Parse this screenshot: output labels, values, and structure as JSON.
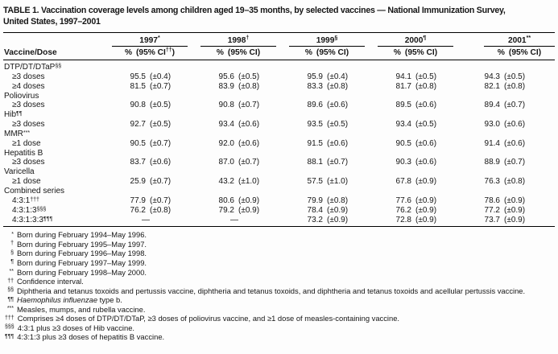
{
  "title": {
    "line1": "TABLE 1. Vaccination coverage levels among children aged 19–35 months, by selected vaccines — National Immunization Survey,",
    "line2": "United States, 1997–2001"
  },
  "table": {
    "row_header": "Vaccine/Dose",
    "years": [
      {
        "label": "1997",
        "sup": "*",
        "pct": "%",
        "ci_open": "(95% CI",
        "ci_sup": "††",
        "ci_close": ")"
      },
      {
        "label": "1998",
        "sup": "†",
        "pct": "%",
        "ci_open": "(95% CI",
        "ci_sup": "",
        "ci_close": ")"
      },
      {
        "label": "1999",
        "sup": "§",
        "pct": "%",
        "ci_open": "(95% CI",
        "ci_sup": "",
        "ci_close": ")"
      },
      {
        "label": "2000",
        "sup": "¶",
        "pct": "%",
        "ci_open": "(95% CI",
        "ci_sup": "",
        "ci_close": ")"
      },
      {
        "label": "2001",
        "sup": "**",
        "pct": "%",
        "ci_open": "(95% CI",
        "ci_sup": "",
        "ci_close": ")"
      }
    ],
    "rows": [
      {
        "indent": false,
        "label": "DTP/DT/DTaP",
        "sup": "§§",
        "cells": []
      },
      {
        "indent": true,
        "label": "≥3 doses",
        "sup": "",
        "cells": [
          [
            "95.5",
            "(±0.4)"
          ],
          [
            "95.6",
            "(±0.5)"
          ],
          [
            "95.9",
            "(±0.4)"
          ],
          [
            "94.1",
            "(±0.5)"
          ],
          [
            "94.3",
            "(±0.5)"
          ]
        ]
      },
      {
        "indent": true,
        "label": "≥4 doses",
        "sup": "",
        "cells": [
          [
            "81.5",
            "(±0.7)"
          ],
          [
            "83.9",
            "(±0.8)"
          ],
          [
            "83.3",
            "(±0.8)"
          ],
          [
            "81.7",
            "(±0.8)"
          ],
          [
            "82.1",
            "(±0.8)"
          ]
        ]
      },
      {
        "indent": false,
        "label": "Poliovirus",
        "sup": "",
        "cells": []
      },
      {
        "indent": true,
        "label": "≥3 doses",
        "sup": "",
        "cells": [
          [
            "90.8",
            "(±0.5)"
          ],
          [
            "90.8",
            "(±0.7)"
          ],
          [
            "89.6",
            "(±0.6)"
          ],
          [
            "89.5",
            "(±0.6)"
          ],
          [
            "89.4",
            "(±0.7)"
          ]
        ]
      },
      {
        "indent": false,
        "label": "Hib",
        "sup": "¶¶",
        "cells": []
      },
      {
        "indent": true,
        "label": "≥3 doses",
        "sup": "",
        "cells": [
          [
            "92.7",
            "(±0.5)"
          ],
          [
            "93.4",
            "(±0.6)"
          ],
          [
            "93.5",
            "(±0.5)"
          ],
          [
            "93.4",
            "(±0.5)"
          ],
          [
            "93.0",
            "(±0.6)"
          ]
        ]
      },
      {
        "indent": false,
        "label": "MMR",
        "sup": "***",
        "cells": []
      },
      {
        "indent": true,
        "label": "≥1 dose",
        "sup": "",
        "cells": [
          [
            "90.5",
            "(±0.7)"
          ],
          [
            "92.0",
            "(±0.6)"
          ],
          [
            "91.5",
            "(±0.6)"
          ],
          [
            "90.5",
            "(±0.6)"
          ],
          [
            "91.4",
            "(±0.6)"
          ]
        ]
      },
      {
        "indent": false,
        "label": "Hepatitis B",
        "sup": "",
        "cells": []
      },
      {
        "indent": true,
        "label": "≥3 doses",
        "sup": "",
        "cells": [
          [
            "83.7",
            "(±0.6)"
          ],
          [
            "87.0",
            "(±0.7)"
          ],
          [
            "88.1",
            "(±0.7)"
          ],
          [
            "90.3",
            "(±0.6)"
          ],
          [
            "88.9",
            "(±0.7)"
          ]
        ]
      },
      {
        "indent": false,
        "label": "Varicella",
        "sup": "",
        "cells": []
      },
      {
        "indent": true,
        "label": "≥1 dose",
        "sup": "",
        "cells": [
          [
            "25.9",
            "(±0.7)"
          ],
          [
            "43.2",
            "(±1.0)"
          ],
          [
            "57.5",
            "(±1.0)"
          ],
          [
            "67.8",
            "(±0.9)"
          ],
          [
            "76.3",
            "(±0.8)"
          ]
        ]
      },
      {
        "indent": false,
        "label": "Combined series",
        "sup": "",
        "cells": []
      },
      {
        "indent": true,
        "label": "4:3:1",
        "sup": "†††",
        "cells": [
          [
            "77.9",
            "(±0.7)"
          ],
          [
            "80.6",
            "(±0.9)"
          ],
          [
            "79.9",
            "(±0.8)"
          ],
          [
            "77.6",
            "(±0.9)"
          ],
          [
            "78.6",
            "(±0.9)"
          ]
        ]
      },
      {
        "indent": true,
        "label": "4:3:1:3",
        "sup": "§§§",
        "cells": [
          [
            "76.2",
            "(±0.8)"
          ],
          [
            "79.2",
            "(±0.9)"
          ],
          [
            "78.4",
            "(±0.9)"
          ],
          [
            "76.2",
            "(±0.9)"
          ],
          [
            "77.2",
            "(±0.9)"
          ]
        ]
      },
      {
        "indent": true,
        "label": "4:3:1:3:3",
        "sup": "¶¶¶",
        "cells": [
          [
            "—",
            ""
          ],
          [
            "—",
            ""
          ],
          [
            "73.2",
            "(±0.9)"
          ],
          [
            "72.8",
            "(±0.9)"
          ],
          [
            "73.7",
            "(±0.9)"
          ]
        ]
      }
    ]
  },
  "footnotes": [
    {
      "marker": "*",
      "italic": "",
      "text": "Born during February 1994–May 1996."
    },
    {
      "marker": "†",
      "italic": "",
      "text": "Born during February 1995–May 1997."
    },
    {
      "marker": "§",
      "italic": "",
      "text": "Born during February 1996–May 1998."
    },
    {
      "marker": "¶",
      "italic": "",
      "text": "Born during February 1997–May 1999."
    },
    {
      "marker": "**",
      "italic": "",
      "text": "Born during February 1998–May 2000."
    },
    {
      "marker": "††",
      "italic": "",
      "text": "Confidence interval."
    },
    {
      "marker": "§§",
      "italic": "",
      "text": "Diphtheria and tetanus toxoids and pertussis vaccine, diphtheria and tetanus toxoids, and diphtheria and tetanus toxoids and acellular pertussis vaccine."
    },
    {
      "marker": "¶¶",
      "italic": "Haemophilus influenzae",
      "text": " type b."
    },
    {
      "marker": "***",
      "italic": "",
      "text": "Measles, mumps, and rubella vaccine."
    },
    {
      "marker": "†††",
      "italic": "",
      "text": "Comprises ≥4 doses of DTP/DT/DTaP, ≥3 doses of poliovirus vaccine, and ≥1 dose of measles-containing vaccine."
    },
    {
      "marker": "§§§",
      "italic": "",
      "text": "4:3:1 plus ≥3 doses of Hib vaccine."
    },
    {
      "marker": "¶¶¶",
      "italic": "",
      "text": "4:3:1:3 plus ≥3 doses of hepatitis B vaccine."
    }
  ]
}
